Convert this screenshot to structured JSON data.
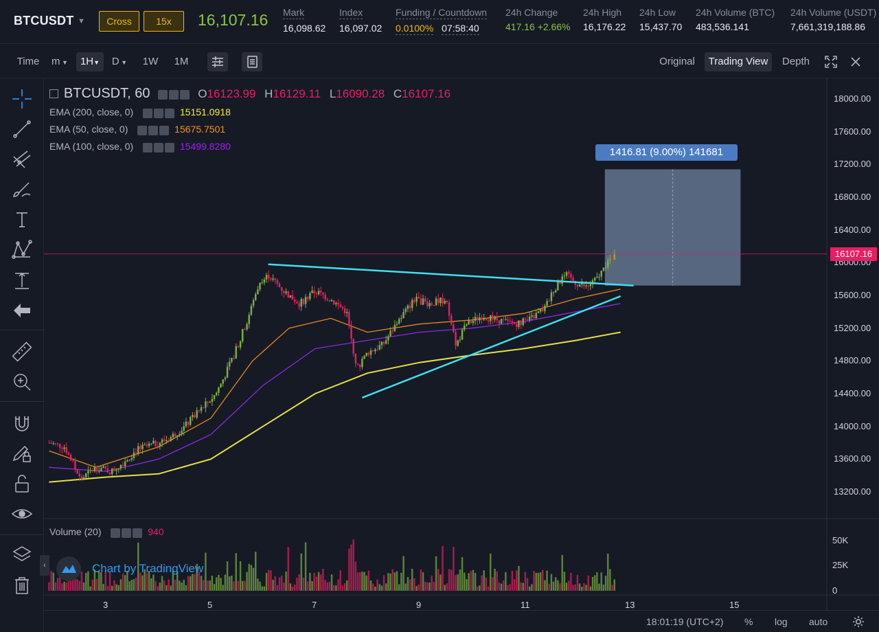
{
  "header": {
    "symbol": "BTCUSDT",
    "margin_mode": "Cross",
    "leverage": "15x",
    "last_price": "16,107.16",
    "stats": [
      {
        "label": "Mark",
        "value": "16,098.62",
        "color": ""
      },
      {
        "label": "Index",
        "value": "16,097.02",
        "color": ""
      },
      {
        "label": "Funding / Countdown",
        "value": "0.0100%",
        "value2": "07:58:40",
        "color": "yellow"
      },
      {
        "label": "24h Change",
        "value": "417.16 +2.66%",
        "color": "green"
      },
      {
        "label": "24h High",
        "value": "16,176.22",
        "color": ""
      },
      {
        "label": "24h Low",
        "value": "15,437.70",
        "color": ""
      },
      {
        "label": "24h Volume (BTC)",
        "value": "483,536.141",
        "color": ""
      },
      {
        "label": "24h Volume (USDT)",
        "value": "7,661,319,188.86",
        "color": ""
      }
    ]
  },
  "toolbar": {
    "time_label": "Time",
    "intervals": [
      "m",
      "1H",
      "D",
      "1W",
      "1M"
    ],
    "active_interval": "1H",
    "views": [
      "Original",
      "Trading View",
      "Depth"
    ],
    "active_view": "Trading View"
  },
  "legend": {
    "title": "BTCUSDT, 60",
    "ohlc": {
      "o_label": "O",
      "o": "16123.99",
      "h_label": "H",
      "h": "16129.11",
      "l_label": "L",
      "l": "16090.28",
      "c_label": "C",
      "c": "16107.16"
    },
    "indicators": [
      {
        "name": "EMA (200, close, 0)",
        "value": "15151.0918",
        "color": "#f5f03a"
      },
      {
        "name": "EMA (50, close, 0)",
        "value": "15675.7501",
        "color": "#f7931a"
      },
      {
        "name": "EMA (100, close, 0)",
        "value": "15499.8280",
        "color": "#a020f0"
      }
    ],
    "volume_name": "Volume (20)",
    "volume_value": "940"
  },
  "measure_label": "1416.81 (9.00%) 141681",
  "watermark": "Chart by TradingView",
  "price_axis": {
    "labels": [
      "18000.00",
      "17600.00",
      "17200.00",
      "16800.00",
      "16400.00",
      "16000.00",
      "15600.00",
      "15200.00",
      "14800.00",
      "14400.00",
      "14000.00",
      "13600.00",
      "13200.00"
    ],
    "current": "16107.16",
    "current_color": "#e91e63"
  },
  "volume_axis": {
    "labels": [
      "50K",
      "25K",
      "0"
    ]
  },
  "time_axis": {
    "labels": [
      "3",
      "5",
      "7",
      "9",
      "11",
      "13",
      "15"
    ]
  },
  "bottom": {
    "clock": "18:01:19",
    "tz": "(UTC+2)",
    "percent": "%",
    "log": "log",
    "auto": "auto"
  },
  "chart_data": {
    "type": "candlestick",
    "x_unit": "day of month",
    "ylim": [
      13000,
      18200
    ],
    "volume_ylim": [
      0,
      65000
    ],
    "anchors": [
      {
        "x": 1.9,
        "y": 13800
      },
      {
        "x": 2.2,
        "y": 13750
      },
      {
        "x": 2.5,
        "y": 13350
      },
      {
        "x": 2.8,
        "y": 13500
      },
      {
        "x": 3.1,
        "y": 13450
      },
      {
        "x": 3.3,
        "y": 13550
      },
      {
        "x": 3.6,
        "y": 13720
      },
      {
        "x": 3.9,
        "y": 13780
      },
      {
        "x": 4.2,
        "y": 13850
      },
      {
        "x": 4.5,
        "y": 14000
      },
      {
        "x": 4.8,
        "y": 14200
      },
      {
        "x": 5.1,
        "y": 14400
      },
      {
        "x": 5.4,
        "y": 14800
      },
      {
        "x": 5.7,
        "y": 15300
      },
      {
        "x": 5.9,
        "y": 15700
      },
      {
        "x": 6.1,
        "y": 15850
      },
      {
        "x": 6.4,
        "y": 15650
      },
      {
        "x": 6.7,
        "y": 15500
      },
      {
        "x": 7.0,
        "y": 15650
      },
      {
        "x": 7.3,
        "y": 15550
      },
      {
        "x": 7.6,
        "y": 15400
      },
      {
        "x": 7.8,
        "y": 14700
      },
      {
        "x": 8.0,
        "y": 14900
      },
      {
        "x": 8.3,
        "y": 15000
      },
      {
        "x": 8.6,
        "y": 15300
      },
      {
        "x": 8.9,
        "y": 15550
      },
      {
        "x": 9.2,
        "y": 15500
      },
      {
        "x": 9.5,
        "y": 15550
      },
      {
        "x": 9.7,
        "y": 15000
      },
      {
        "x": 9.9,
        "y": 15250
      },
      {
        "x": 10.2,
        "y": 15350
      },
      {
        "x": 10.5,
        "y": 15300
      },
      {
        "x": 10.8,
        "y": 15250
      },
      {
        "x": 11.1,
        "y": 15300
      },
      {
        "x": 11.4,
        "y": 15450
      },
      {
        "x": 11.6,
        "y": 15700
      },
      {
        "x": 11.8,
        "y": 15850
      },
      {
        "x": 12.0,
        "y": 15750
      },
      {
        "x": 12.2,
        "y": 15700
      },
      {
        "x": 12.4,
        "y": 15800
      },
      {
        "x": 12.6,
        "y": 16000
      },
      {
        "x": 12.75,
        "y": 16107
      }
    ],
    "trendlines": [
      {
        "x1": 6.1,
        "y1": 15980,
        "x2": 13.1,
        "y2": 15720,
        "color": "#40e0f0"
      },
      {
        "x1": 7.9,
        "y1": 14350,
        "x2": 12.85,
        "y2": 15590,
        "color": "#40e0f0"
      }
    ],
    "ema": [
      {
        "name": "EMA 200",
        "color": "#e6e04a",
        "points": [
          [
            1.9,
            13320
          ],
          [
            3.0,
            13380
          ],
          [
            4.0,
            13420
          ],
          [
            5.0,
            13600
          ],
          [
            6.0,
            14000
          ],
          [
            7.0,
            14400
          ],
          [
            8.0,
            14650
          ],
          [
            9.0,
            14780
          ],
          [
            10.0,
            14870
          ],
          [
            11.0,
            14950
          ],
          [
            12.0,
            15050
          ],
          [
            12.85,
            15150
          ]
        ]
      },
      {
        "name": "EMA 100",
        "color": "#8a2be2",
        "points": [
          [
            1.9,
            13500
          ],
          [
            3.0,
            13450
          ],
          [
            4.0,
            13600
          ],
          [
            5.0,
            13900
          ],
          [
            6.0,
            14500
          ],
          [
            7.0,
            14950
          ],
          [
            8.0,
            15050
          ],
          [
            9.0,
            15150
          ],
          [
            10.0,
            15200
          ],
          [
            11.0,
            15280
          ],
          [
            12.0,
            15400
          ],
          [
            12.85,
            15500
          ]
        ]
      },
      {
        "name": "EMA 50",
        "color": "#e88a1f",
        "points": [
          [
            1.9,
            13700
          ],
          [
            2.8,
            13500
          ],
          [
            4.0,
            13750
          ],
          [
            5.0,
            14100
          ],
          [
            5.8,
            14800
          ],
          [
            6.5,
            15200
          ],
          [
            7.3,
            15320
          ],
          [
            8.0,
            15150
          ],
          [
            9.0,
            15250
          ],
          [
            10.0,
            15300
          ],
          [
            11.0,
            15380
          ],
          [
            12.0,
            15560
          ],
          [
            12.85,
            15676
          ]
        ]
      }
    ],
    "measure_box": {
      "x1": 12.55,
      "x2": 15.15,
      "y1": 15720,
      "y2": 17140,
      "color": "#8fa8cc"
    }
  }
}
